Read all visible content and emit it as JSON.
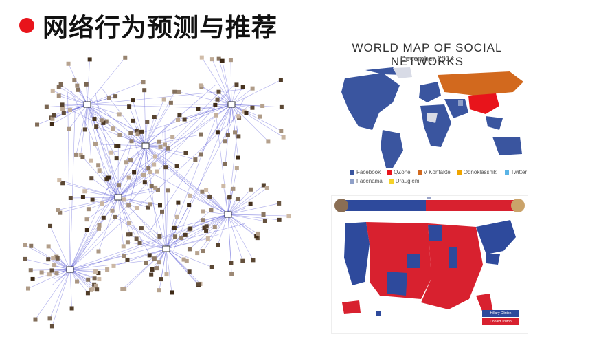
{
  "slide": {
    "title": "网络行为预测与推荐"
  },
  "world_map": {
    "title": "WORLD MAP OF SOCIAL NETWORKS",
    "subtitle": "December 2014",
    "legend": [
      {
        "label": "Facebook",
        "color": "#3a559f"
      },
      {
        "label": "QZone",
        "color": "#e8141b"
      },
      {
        "label": "V Kontakte",
        "color": "#d2691e"
      },
      {
        "label": "Odnoklassniki",
        "color": "#f0a500"
      },
      {
        "label": "Twitter",
        "color": "#5ab4e6"
      },
      {
        "label": "Facenama",
        "color": "#8fa0c8"
      },
      {
        "label": "Draugiem",
        "color": "#f5d22a"
      }
    ]
  },
  "us_map": {
    "candidates": {
      "left": "Hillary Clinton",
      "right": "Donald Trump"
    },
    "legend": [
      {
        "label": "Hillary Clinton",
        "color": "#2e4a9c"
      },
      {
        "label": "Donald Trump",
        "color": "#d8212f"
      }
    ]
  }
}
